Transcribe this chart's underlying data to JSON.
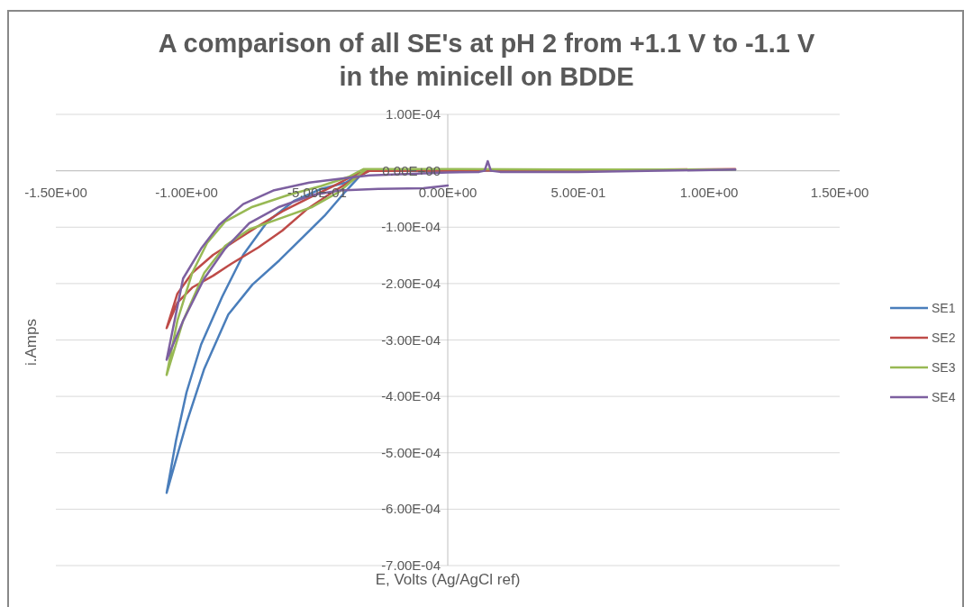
{
  "chart_data": {
    "type": "line",
    "title": "A comparison of all SE's at pH 2 from +1.1 V to -1.1 V\nin the minicell on BDDE",
    "xlabel": "E, Volts (Ag/AgCl ref)",
    "ylabel": "i.Amps",
    "xlim": [
      -1.5,
      1.5
    ],
    "xticks": [
      {
        "value": -1.5,
        "label": "-1.50E+00"
      },
      {
        "value": -1,
        "label": "-1.00E+00"
      },
      {
        "value": -0.5,
        "label": "-5.00E-01"
      },
      {
        "value": 0,
        "label": "0.00E+00"
      },
      {
        "value": 0.5,
        "label": "5.00E-01"
      },
      {
        "value": 1,
        "label": "1.00E+00"
      },
      {
        "value": 1.5,
        "label": "1.50E+00"
      }
    ],
    "ylim": [
      -0.0007,
      0.0001
    ],
    "yticks": [
      {
        "value": 0.0001,
        "label": "1.00E-04"
      },
      {
        "value": 0,
        "label": "0.00E+00"
      },
      {
        "value": -0.0001,
        "label": "-1.00E-04"
      },
      {
        "value": -0.0002,
        "label": "-2.00E-04"
      },
      {
        "value": -0.0003,
        "label": "-3.00E-04"
      },
      {
        "value": -0.0004,
        "label": "-4.00E-04"
      },
      {
        "value": -0.0005,
        "label": "-5.00E-04"
      },
      {
        "value": -0.0006,
        "label": "-6.00E-04"
      },
      {
        "value": -0.0007,
        "label": "-7.00E-04"
      }
    ],
    "grid": "y",
    "legend": "right",
    "line_style": "solid",
    "marker": "none",
    "series": [
      {
        "name": "SE1",
        "color": "#4a7ebb",
        "x": [
          1.1,
          0.5,
          0,
          -0.3,
          -0.346,
          -0.39,
          -0.484,
          -0.587,
          -0.69,
          -0.783,
          -0.863,
          -0.944,
          -1.0,
          -1.04,
          -1.076,
          -1.0,
          -0.932,
          -0.84,
          -0.748,
          -0.645,
          -0.553,
          -0.472,
          -0.392,
          -0.334,
          -0.3
        ],
        "values": [
          2e-06,
          1e-06,
          0,
          0,
          -8e-06,
          -2.1e-05,
          -3.2e-05,
          -5.3e-05,
          -9e-05,
          -0.000149,
          -0.000223,
          -0.000308,
          -0.000393,
          -0.000478,
          -0.000571,
          -0.000447,
          -0.000351,
          -0.000255,
          -0.000202,
          -0.000159,
          -0.000117,
          -8e-05,
          -3.7e-05,
          -8e-06,
          0
        ]
      },
      {
        "name": "SE2",
        "color": "#be4b48",
        "x": [
          1.1,
          0.5,
          0,
          -0.3,
          -0.346,
          -0.438,
          -0.53,
          -0.633,
          -0.725,
          -0.806,
          -0.898,
          -0.978,
          -1.035,
          -1.076,
          -1.035,
          -0.978,
          -0.898,
          -0.829,
          -0.725,
          -0.633,
          -0.541,
          -0.438,
          -0.334,
          -0.3
        ],
        "values": [
          3e-06,
          1e-06,
          0,
          0,
          -5e-06,
          -2.7e-05,
          -4.8e-05,
          -7.2e-05,
          -9.8e-05,
          -0.000122,
          -0.000149,
          -0.000181,
          -0.000218,
          -0.000279,
          -0.000234,
          -0.000207,
          -0.000186,
          -0.000165,
          -0.000136,
          -0.000106,
          -6.9e-05,
          -3.7e-05,
          -8e-06,
          0
        ]
      },
      {
        "name": "SE3",
        "color": "#98b954",
        "x": [
          1.1,
          0.5,
          0,
          -0.3,
          -0.323,
          -0.38,
          -0.484,
          -0.61,
          -0.748,
          -0.852,
          -0.921,
          -0.978,
          -1.035,
          -1.076,
          -1.013,
          -0.932,
          -0.852,
          -0.76,
          -0.645,
          -0.518,
          -0.415,
          -0.334,
          -0.311
        ],
        "values": [
          2e-06,
          2e-06,
          3e-06,
          3e-06,
          3e-06,
          -1.1e-05,
          -2.7e-05,
          -4.3e-05,
          -6.4e-05,
          -9e-05,
          -0.000128,
          -0.000181,
          -0.000266,
          -0.000362,
          -0.000266,
          -0.000181,
          -0.000133,
          -0.000104,
          -8.5e-05,
          -6.4e-05,
          -3.7e-05,
          -5e-06,
          3e-06
        ]
      },
      {
        "name": "SE4",
        "color": "#7d60a0",
        "x": [
          1.1,
          0.5,
          0.2,
          0.165,
          0.153,
          0.141,
          0.12,
          0,
          -0.3,
          -0.392,
          -0.53,
          -0.668,
          -0.783,
          -0.875,
          -0.944,
          -1.013,
          -1.076,
          -1.013,
          -0.932,
          -0.852,
          -0.76,
          -0.645,
          -0.518,
          -0.415,
          -0.266,
          -0.093,
          0.0
        ],
        "values": [
          2e-06,
          -2e-06,
          -2e-06,
          0,
          1.7e-05,
          0,
          -2e-06,
          -3e-06,
          -8e-06,
          -1.3e-05,
          -2.1e-05,
          -3.5e-05,
          -5.9e-05,
          -9.6e-05,
          -0.000138,
          -0.000191,
          -0.000335,
          -0.000266,
          -0.000191,
          -0.000138,
          -9.3e-05,
          -6.4e-05,
          -4.3e-05,
          -3.5e-05,
          -3.2e-05,
          -3.1e-05,
          -2.6e-05
        ]
      }
    ]
  }
}
